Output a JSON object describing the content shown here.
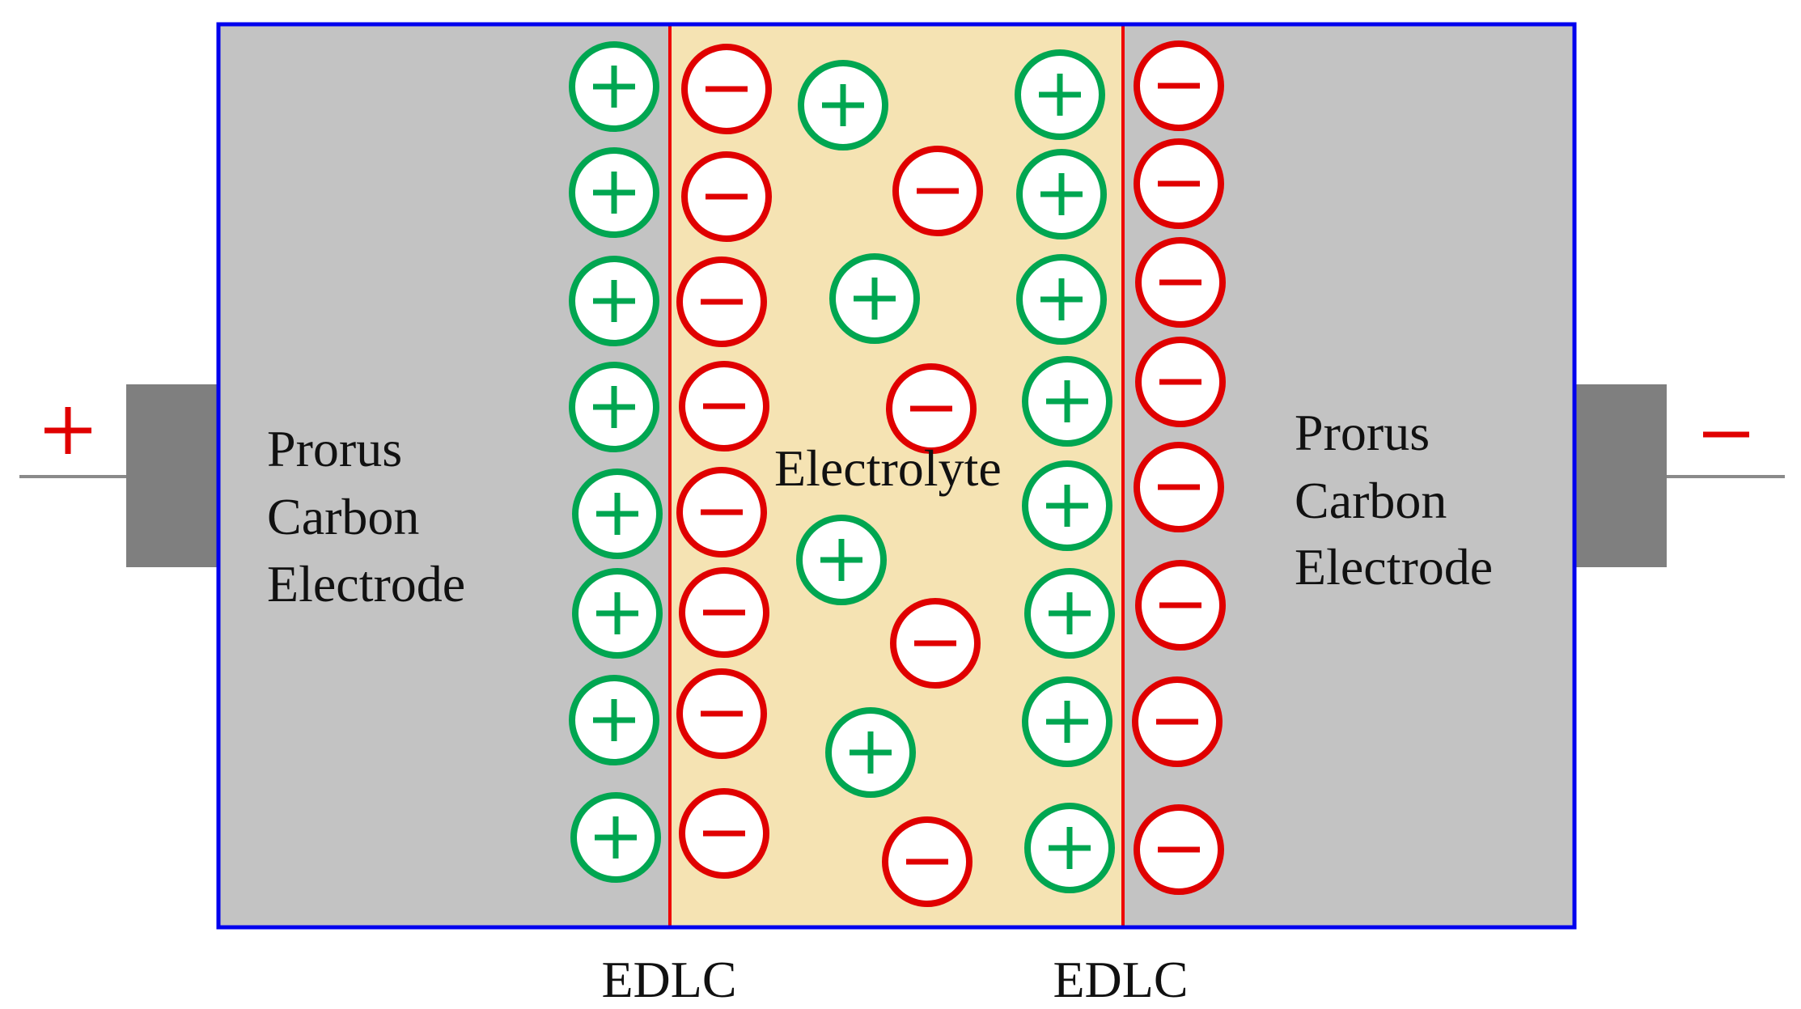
{
  "diagram": {
    "terminals": {
      "positive": {
        "symbol": "+"
      },
      "negative": {
        "symbol": "−"
      }
    },
    "regions": {
      "left_electrode": {
        "label_lines": [
          "Prorus",
          "Carbon",
          "Electrode"
        ]
      },
      "right_electrode": {
        "label_lines": [
          "Prorus",
          "Carbon",
          "Electrode"
        ]
      },
      "electrolyte": {
        "label": "Electrolyte"
      }
    },
    "layers": {
      "left_edlc": {
        "label": "EDLC"
      },
      "right_edlc": {
        "label": "EDLC"
      }
    },
    "ion_types": {
      "cation": {
        "sign": "+",
        "color": "#00a651"
      },
      "anion": {
        "sign": "−",
        "color": "#e00000"
      }
    },
    "colors": {
      "electrode_fill": "#c3c3c3",
      "electrolyte_fill": "#f5e3b3",
      "cell_border": "#0000ee",
      "interface_line": "#ee0000",
      "terminal_tab": "#7f7f7f",
      "wire": "#8a8a8a",
      "positive_symbol": "#e00000",
      "negative_symbol": "#e00000"
    }
  }
}
